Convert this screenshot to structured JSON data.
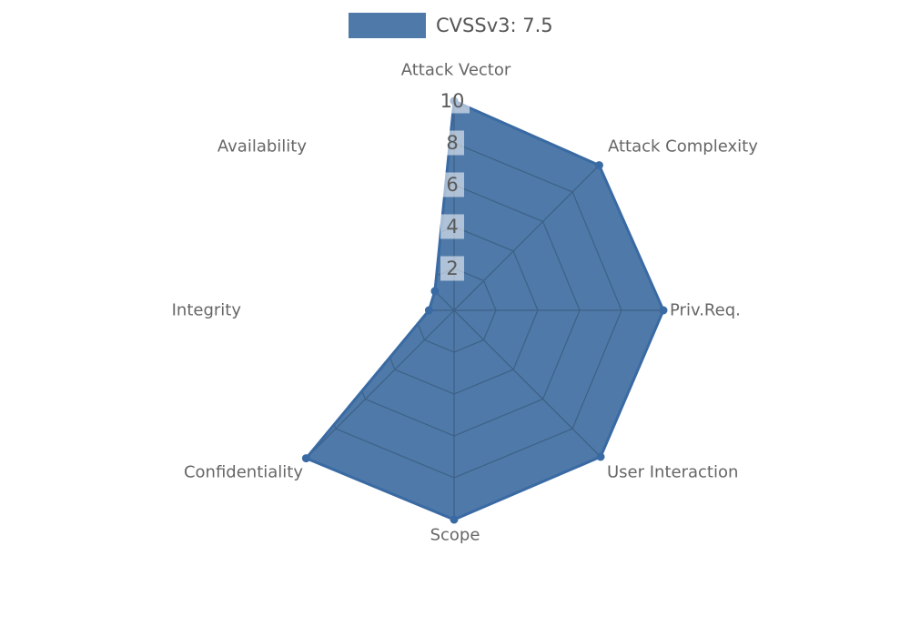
{
  "legend": {
    "label": "CVSSv3: 7.5"
  },
  "colors": {
    "fill": "#4e79a8",
    "stroke": "#3a6aa3",
    "grid_line": "#3e6186",
    "axis_label": "#666666",
    "tick_text": "#595959",
    "tick_box": "rgba(255,255,255,0.55)"
  },
  "chart_data": {
    "type": "radar",
    "categories": [
      "Attack Vector",
      "Attack Complexity",
      "Priv.Req.",
      "User Interaction",
      "Scope",
      "Confidentiality",
      "Integrity",
      "Availability"
    ],
    "series": [
      {
        "name": "CVSSv3: 7.5",
        "values": [
          10,
          9.8,
          10,
          9.9,
          10,
          10,
          1.2,
          1.3
        ]
      }
    ],
    "ticks": [
      2,
      4,
      6,
      8,
      10
    ],
    "rmin": 0,
    "rmax": 10,
    "grid": true,
    "grid_visible_only_inside_polygon": true,
    "legend_position": "top-center"
  }
}
